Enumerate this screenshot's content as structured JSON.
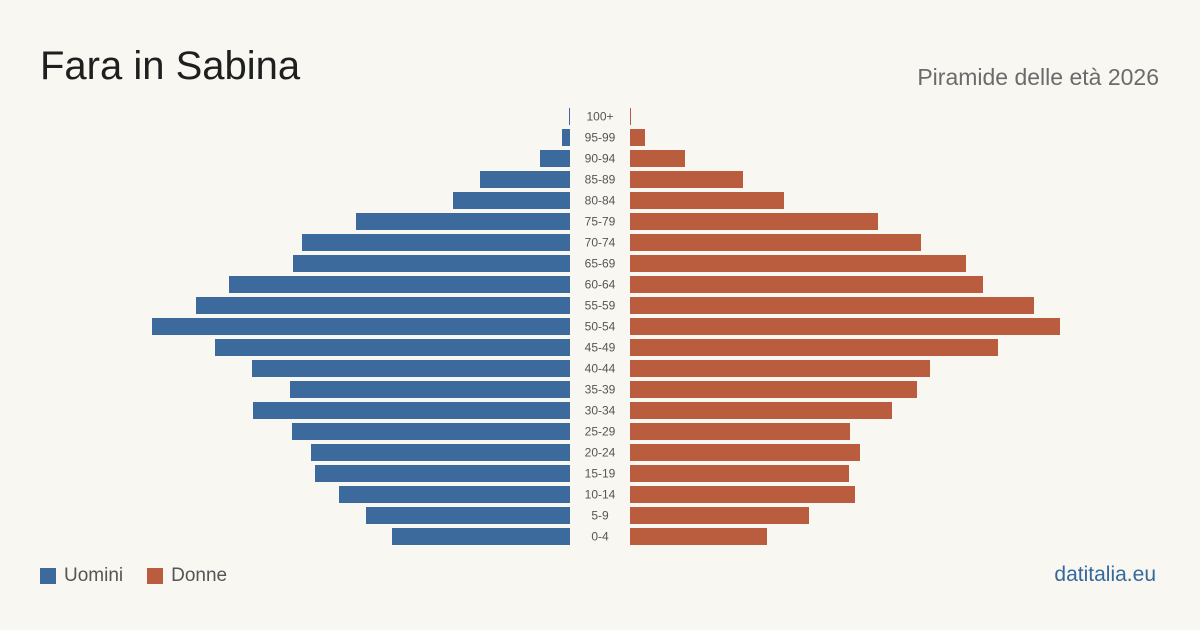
{
  "header": {
    "title": "Fara in Sabina",
    "subtitle": "Piramide delle età 2026"
  },
  "legend": {
    "men_label": "Uomini",
    "women_label": "Donne"
  },
  "footer": {
    "brand": "datitalia.eu"
  },
  "colors": {
    "men": "#3c6a9c",
    "women": "#b95d3e",
    "background": "#f9f7f2"
  },
  "chart_data": {
    "type": "bar",
    "orientation": "horizontal-population-pyramid",
    "categories": [
      "100+",
      "95-99",
      "90-94",
      "85-89",
      "80-84",
      "75-79",
      "70-74",
      "65-69",
      "60-64",
      "55-59",
      "50-54",
      "45-49",
      "40-44",
      "35-39",
      "30-34",
      "25-29",
      "20-24",
      "15-19",
      "10-14",
      "5-9",
      "0-4"
    ],
    "series": [
      {
        "name": "Uomini",
        "values": [
          1,
          8,
          30,
          90,
          117,
          214,
          268,
          277,
          341,
          374,
          418,
          355,
          318,
          280,
          317,
          278,
          259,
          255,
          231,
          204,
          178
        ]
      },
      {
        "name": "Donne",
        "values": [
          1,
          15,
          55,
          113,
          154,
          248,
          291,
          336,
          353,
          404,
          430,
          368,
          300,
          287,
          262,
          220,
          230,
          219,
          225,
          179,
          137
        ]
      }
    ],
    "grid": false,
    "legend_position": "bottom-left"
  }
}
